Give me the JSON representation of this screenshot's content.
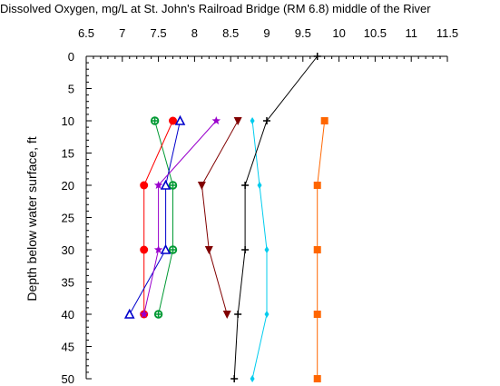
{
  "chart_data": {
    "type": "line",
    "title": "Dissolved Oxygen, mg/L at St. John's Railroad Bridge (RM 6.8) middle of the River",
    "xlabel": "",
    "ylabel": "Depth below water surface, ft",
    "x_axis_position": "top",
    "y_axis_inverted": true,
    "xlim": [
      6.5,
      11.5
    ],
    "ylim": [
      0,
      50
    ],
    "xticks": [
      6.5,
      7,
      7.5,
      8,
      8.5,
      9,
      9.5,
      10,
      10.5,
      11,
      11.5
    ],
    "xtick_labels": [
      "6.5",
      "7",
      "7.5",
      "8",
      "8.5",
      "9",
      "9.5",
      "10",
      "10.5",
      "11",
      "11.5"
    ],
    "yticks": [
      0,
      5,
      10,
      15,
      20,
      25,
      30,
      35,
      40,
      45,
      50
    ],
    "ytick_labels": [
      "0",
      "5",
      "10",
      "15",
      "20",
      "25",
      "30",
      "35",
      "40",
      "45",
      "50"
    ],
    "grid": false,
    "legend": "none",
    "series": [
      {
        "color": "#ff6600",
        "marker": "square",
        "points": [
          [
            9.8,
            10
          ],
          [
            9.7,
            20
          ],
          [
            9.7,
            30
          ],
          [
            9.7,
            40
          ],
          [
            9.7,
            50
          ]
        ]
      },
      {
        "color": "#00ccee",
        "marker": "diamond",
        "points": [
          [
            8.8,
            10
          ],
          [
            8.9,
            20
          ],
          [
            9.0,
            30
          ],
          [
            9.0,
            40
          ],
          [
            8.8,
            50
          ]
        ]
      },
      {
        "color": "#000000",
        "marker": "plus",
        "points": [
          [
            9.7,
            0
          ],
          [
            9.0,
            10
          ],
          [
            8.7,
            20
          ],
          [
            8.7,
            30
          ],
          [
            8.6,
            40
          ],
          [
            8.55,
            50
          ]
        ]
      },
      {
        "color": "#800000",
        "marker": "triangle-down",
        "points": [
          [
            8.6,
            10
          ],
          [
            8.1,
            20
          ],
          [
            8.2,
            30
          ],
          [
            8.45,
            40
          ]
        ]
      },
      {
        "color": "#009933",
        "marker": "circle-cross",
        "points": [
          [
            7.45,
            10
          ],
          [
            7.7,
            20
          ],
          [
            7.7,
            30
          ],
          [
            7.5,
            40
          ]
        ]
      },
      {
        "color": "#ff0000",
        "marker": "circle",
        "points": [
          [
            7.7,
            10
          ],
          [
            7.3,
            20
          ],
          [
            7.3,
            30
          ],
          [
            7.3,
            40
          ]
        ]
      },
      {
        "color": "#0000cc",
        "marker": "triangle-up",
        "points": [
          [
            7.8,
            10
          ],
          [
            7.6,
            20
          ],
          [
            7.6,
            30
          ],
          [
            7.1,
            40
          ]
        ]
      },
      {
        "color": "#9900cc",
        "marker": "star",
        "points": [
          [
            8.3,
            10
          ],
          [
            7.5,
            20
          ],
          [
            7.5,
            30
          ],
          [
            7.3,
            40
          ]
        ]
      }
    ]
  }
}
